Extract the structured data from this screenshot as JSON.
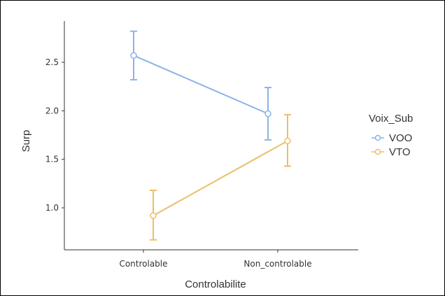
{
  "chart_data": {
    "type": "line",
    "title": "",
    "xlabel": "Controlabilite",
    "ylabel": "Surp",
    "categories": [
      "Controlable",
      "Non_controlable"
    ],
    "yticks": [
      "1.0",
      "1.5",
      "2.0",
      "2.5"
    ],
    "ylim": [
      0.6,
      2.85
    ],
    "grid": false,
    "legend": {
      "title": "Voix_Sub",
      "position": "right"
    },
    "series": [
      {
        "name": "VOO",
        "color": "#8AB4E8",
        "values": [
          2.57,
          1.97
        ],
        "lower": [
          2.32,
          1.7
        ],
        "upper": [
          2.82,
          2.24
        ]
      },
      {
        "name": "VTO",
        "color": "#EBBE6A",
        "values": [
          0.92,
          1.69
        ],
        "lower": [
          0.67,
          1.43
        ],
        "upper": [
          1.18,
          1.96
        ]
      }
    ]
  }
}
